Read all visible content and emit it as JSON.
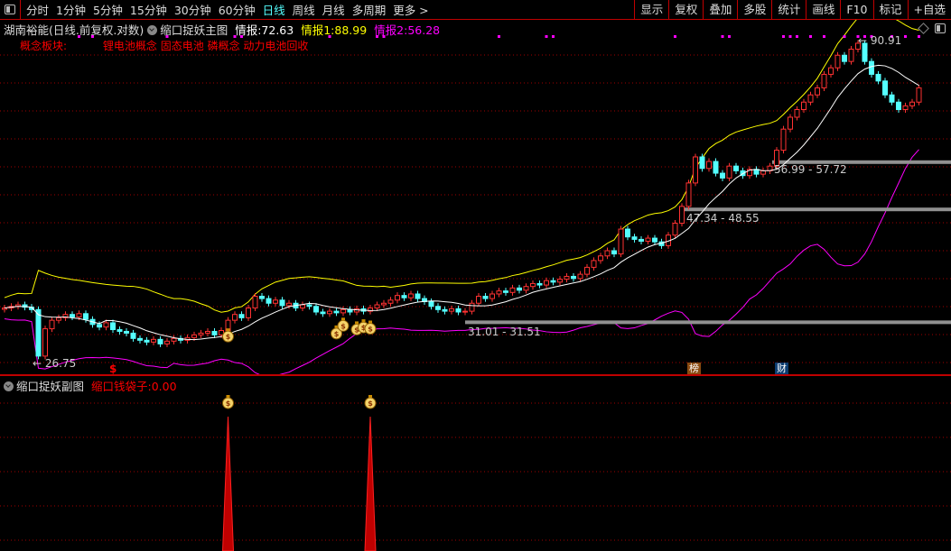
{
  "toolbar": {
    "periods": [
      "分时",
      "1分钟",
      "5分钟",
      "15分钟",
      "30分钟",
      "60分钟",
      "日线",
      "周线",
      "月线",
      "多周期",
      "更多 >"
    ],
    "active": "日线",
    "buttons": [
      "显示",
      "复权",
      "叠加",
      "多股",
      "统计",
      "画线",
      "F10",
      "标记",
      "+自选"
    ]
  },
  "info": {
    "stock": "湖南裕能(日线.前复权.对数)",
    "indicator": "缩口捉妖主图",
    "v0_label": "情报:",
    "v0": "72.63",
    "v1_label": "情报1:",
    "v1": "88.99",
    "v2_label": "情报2:",
    "v2": "56.28",
    "colors": {
      "v0": "#ffffff",
      "v1": "#ffff00",
      "v2": "#ff00ff"
    }
  },
  "concept": {
    "label": "概念板块:",
    "items": [
      "锂电池概念",
      "固态电池",
      "磷概念",
      "动力电池回收"
    ]
  },
  "price_labels": {
    "low": "26.75",
    "high": "90.91"
  },
  "zones": [
    {
      "label": "31.01 - 31.51",
      "lo": 31.01,
      "hi": 31.51
    },
    {
      "label": "47.34 - 48.55",
      "lo": 47.34,
      "hi": 48.55
    },
    {
      "label": "56.99 - 57.72",
      "lo": 56.99,
      "hi": 57.72
    }
  ],
  "tags": {
    "bang": "榜",
    "cai": "财",
    "dollar": "$"
  },
  "sub": {
    "title": "缩口捉妖副图",
    "value_label": "缩口钱袋子:",
    "value": "0.00"
  },
  "colors": {
    "up": "#ff3232",
    "down": "#54ffff",
    "ma": "#ffffff",
    "upper": "#ffff00",
    "lower": "#ff00ff",
    "grid": "#a00000",
    "zone": "#909090"
  },
  "closes": [
    33,
    33.2,
    33.4,
    33.1,
    32.8,
    27.5,
    30.5,
    31.5,
    31.8,
    32.2,
    31.9,
    32.3,
    31.6,
    31,
    30.7,
    31.2,
    30.4,
    30.2,
    30.0,
    29.4,
    29.2,
    29.0,
    29.3,
    28.8,
    29.1,
    29.4,
    29.2,
    29.5,
    29.8,
    30.0,
    30.2,
    29.8,
    30.3,
    31.5,
    32.2,
    31.8,
    33.0,
    34.5,
    34.2,
    33.6,
    34.0,
    33.3,
    33.6,
    33.0,
    33.4,
    33.2,
    32.5,
    32.3,
    32.6,
    32.4,
    32.8,
    32.5,
    32.9,
    32.6,
    33.0,
    33.4,
    33.6,
    34.0,
    34.6,
    34.3,
    34.8,
    34.2,
    33.8,
    33.2,
    32.8,
    32.6,
    32.9,
    32.5,
    32.6,
    33.6,
    34.5,
    34.2,
    34.8,
    35.2,
    35.0,
    35.6,
    35.3,
    35.8,
    36.2,
    36.0,
    36.6,
    36.4,
    36.8,
    37.2,
    36.9,
    37.5,
    38.5,
    39.5,
    40.2,
    41.0,
    40.5,
    44.5,
    43.2,
    42.8,
    42.5,
    43.0,
    42.4,
    41.8,
    43.5,
    45.5,
    48.5,
    53,
    58.5,
    56,
    57.5,
    55,
    54,
    56.5,
    55.5,
    54.5,
    55.8,
    54.8,
    55.5,
    56.5,
    60,
    65,
    68,
    70,
    72,
    74,
    76,
    80,
    82,
    86,
    84,
    88,
    90,
    84,
    80,
    78,
    74,
    72,
    70,
    71,
    72,
    76
  ],
  "signal_dots": [
    11,
    13,
    24,
    34,
    35,
    48,
    55,
    56,
    73,
    80,
    81,
    99,
    106,
    107,
    115,
    116,
    117,
    119,
    121,
    124,
    126,
    127,
    128,
    131,
    133,
    135
  ],
  "moneybag_candles": [
    33,
    49,
    50,
    52,
    53,
    54
  ],
  "sub_spikes": [
    33,
    54
  ]
}
